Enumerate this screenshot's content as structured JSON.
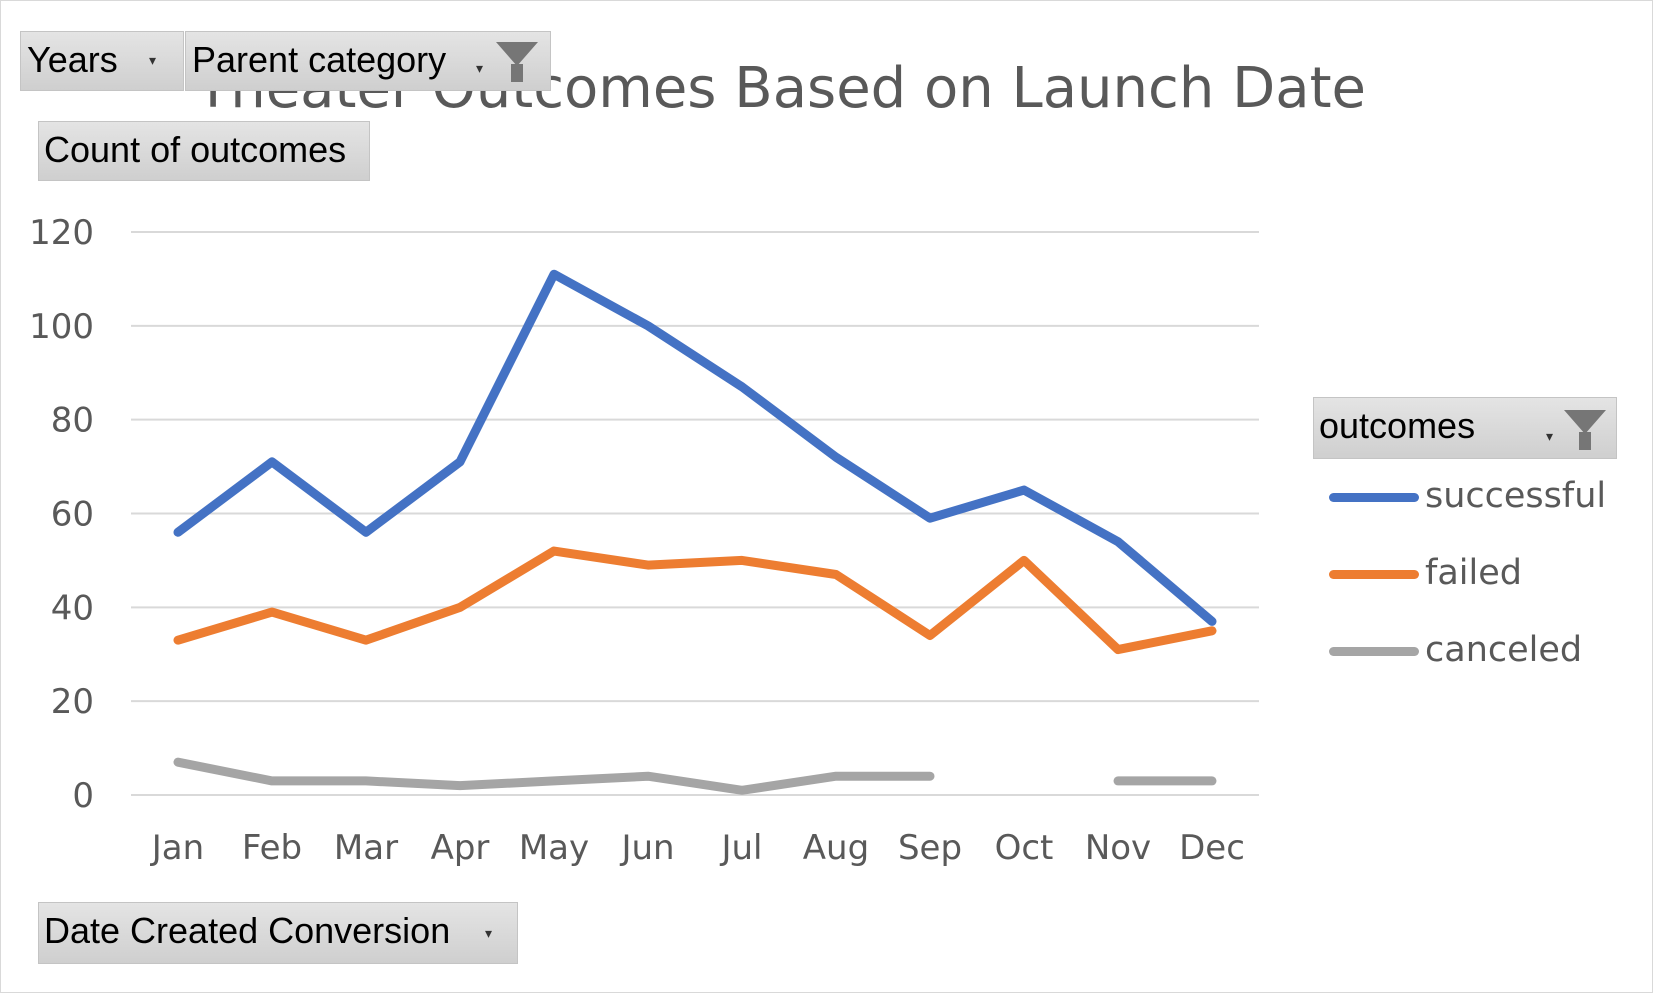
{
  "pivot": {
    "years_label": "Years",
    "parent_category_label": "Parent category",
    "count_label": "Count of outcomes",
    "axis_field_label": "Date Created Conversion",
    "legend_field_label": "outcomes"
  },
  "chart_data": {
    "type": "line",
    "title": "Theater Outcomes Based on Launch Date",
    "xlabel": "",
    "ylabel": "",
    "categories": [
      "Jan",
      "Feb",
      "Mar",
      "Apr",
      "May",
      "Jun",
      "Jul",
      "Aug",
      "Sep",
      "Oct",
      "Nov",
      "Dec"
    ],
    "ylim": [
      0,
      120
    ],
    "yticks": [
      0,
      20,
      40,
      60,
      80,
      100,
      120
    ],
    "grid": true,
    "legend_position": "right",
    "series": [
      {
        "name": "successful",
        "color": "#4472c4",
        "values": [
          56,
          71,
          56,
          71,
          111,
          100,
          87,
          72,
          59,
          65,
          54,
          37
        ]
      },
      {
        "name": "failed",
        "color": "#ed7d31",
        "values": [
          33,
          39,
          33,
          40,
          52,
          49,
          50,
          47,
          34,
          50,
          31,
          35
        ]
      },
      {
        "name": "canceled",
        "color": "#a5a5a5",
        "values": [
          7,
          3,
          3,
          2,
          3,
          4,
          1,
          4,
          4,
          null,
          3,
          3
        ]
      }
    ]
  }
}
